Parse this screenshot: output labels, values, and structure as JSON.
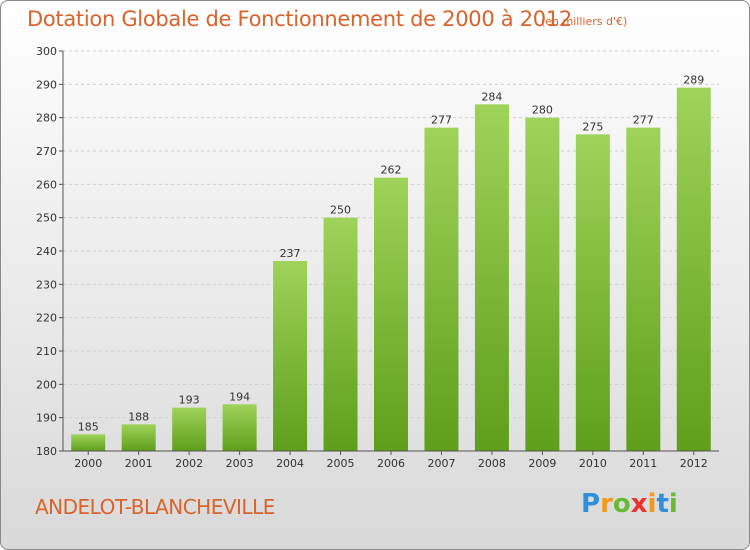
{
  "header": {
    "title": "Dotation Globale de Fonctionnement de 2000 à 2012",
    "unit": "(en milliers d'€)"
  },
  "footer": {
    "commune": "ANDELOT-BLANCHEVILLE",
    "logo": {
      "p": "P",
      "r": "r",
      "o": "o",
      "x": "x",
      "i": "i",
      "t": "t",
      "i2": "i"
    }
  },
  "colors": {
    "title": "#d9632a",
    "bar_top": "#9fd35a",
    "bar_bottom": "#5f9e1b",
    "grid": "#cfcfcf"
  },
  "chart_data": {
    "type": "bar",
    "title": "Dotation Globale de Fonctionnement de 2000 à 2012",
    "xlabel": "",
    "ylabel": "",
    "categories": [
      "2000",
      "2001",
      "2002",
      "2003",
      "2004",
      "2005",
      "2006",
      "2007",
      "2008",
      "2009",
      "2010",
      "2011",
      "2012"
    ],
    "values": [
      185,
      188,
      193,
      194,
      237,
      250,
      262,
      277,
      284,
      280,
      275,
      277,
      289
    ],
    "ylim": [
      180,
      300
    ],
    "yticks": [
      180,
      190,
      200,
      210,
      220,
      230,
      240,
      250,
      260,
      270,
      280,
      290,
      300
    ],
    "grid": "horizontal dashed",
    "legend": "none"
  }
}
